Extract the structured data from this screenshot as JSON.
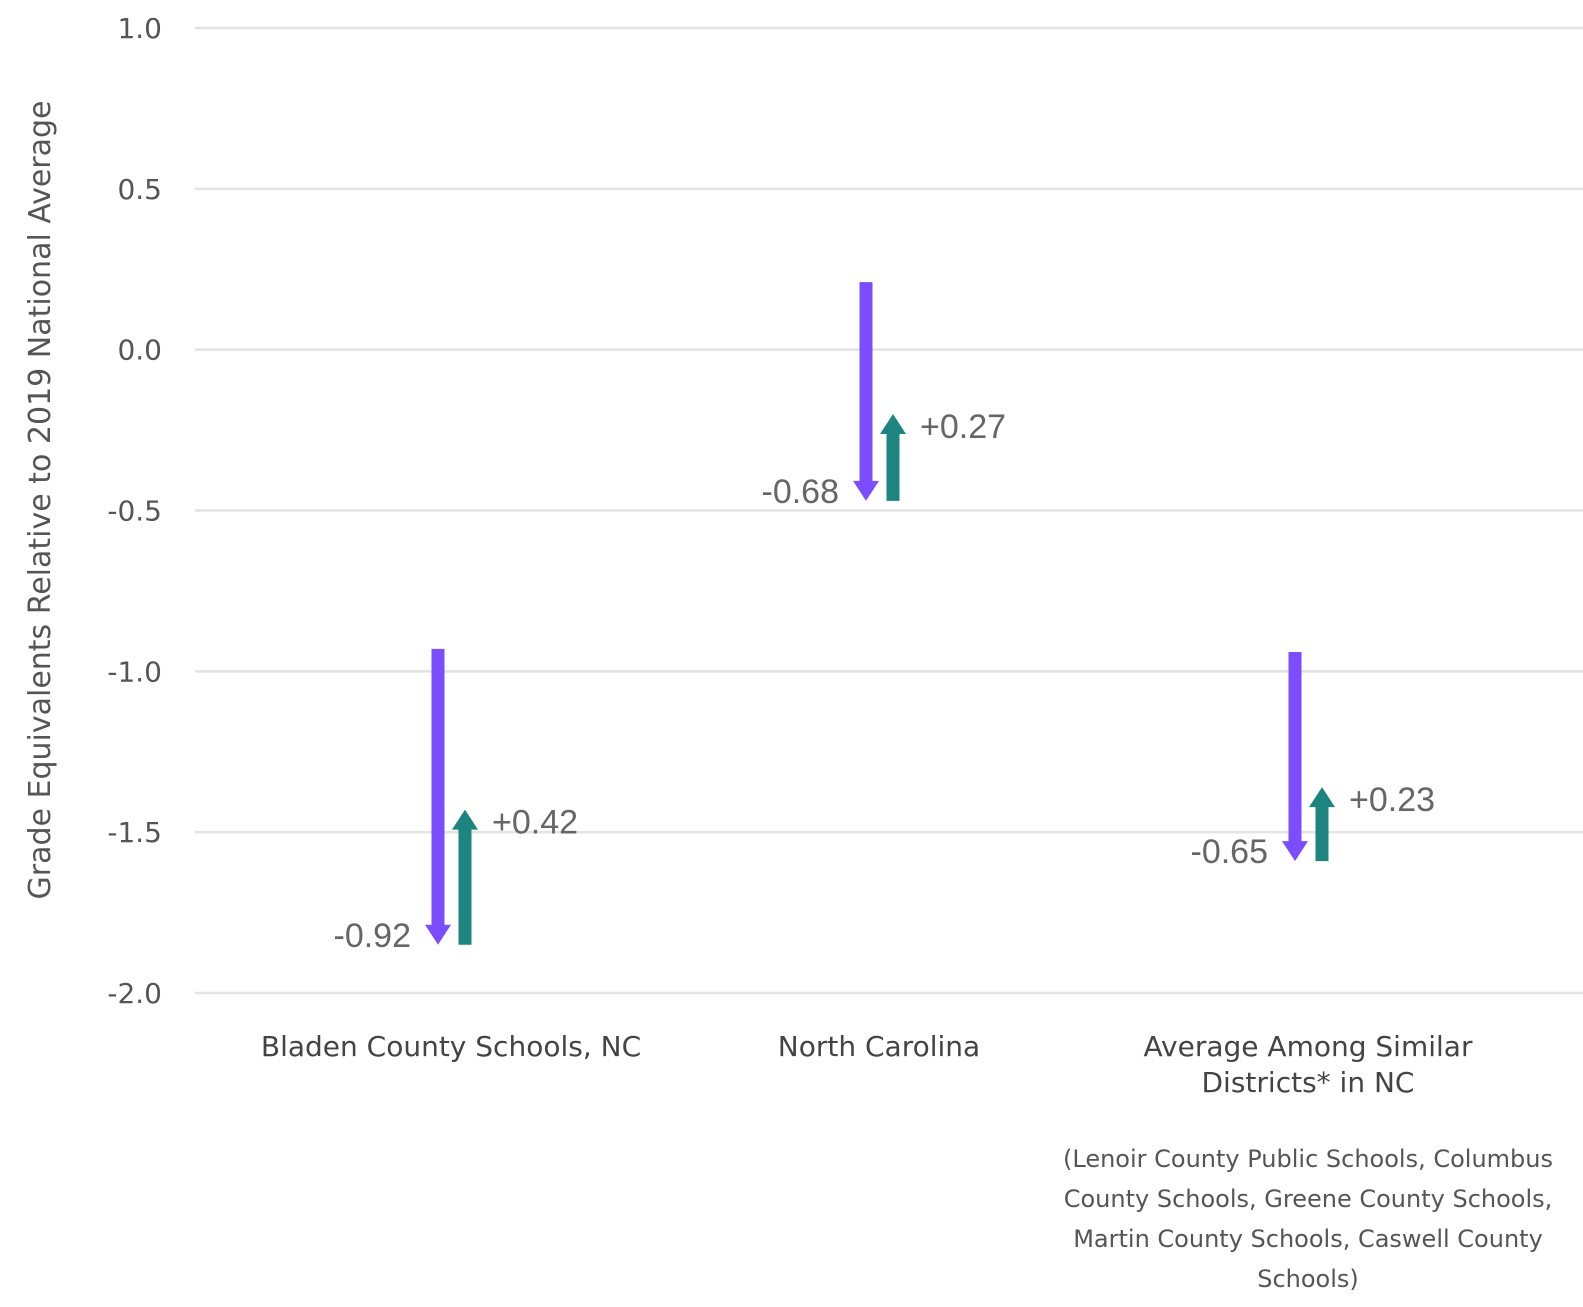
{
  "chart_data": {
    "type": "arrow",
    "ylabel": "Grade Equivalents Relative to 2019 National Average",
    "ylim": [
      -2.0,
      1.0
    ],
    "yticks": [
      1.0,
      0.5,
      0.0,
      -0.5,
      -1.0,
      -1.5,
      -2.0
    ],
    "ytick_labels": [
      "1.0",
      "0.5",
      "0.0",
      "-0.5",
      "-1.0",
      "-1.5",
      "-2.0"
    ],
    "grid": true,
    "colors": {
      "decline": "#7c4dff",
      "recovery": "#1e847f",
      "grid": "#e3e3e3"
    },
    "categories": [
      {
        "label_lines": [
          "Bladen County Schools, NC"
        ],
        "note_lines": [],
        "decline": {
          "start": -0.93,
          "end": -1.85,
          "label": "-0.92"
        },
        "recovery": {
          "start": -1.85,
          "end": -1.43,
          "label": "+0.42"
        }
      },
      {
        "label_lines": [
          "North Carolina"
        ],
        "note_lines": [],
        "decline": {
          "start": 0.21,
          "end": -0.47,
          "label": "-0.68"
        },
        "recovery": {
          "start": -0.47,
          "end": -0.2,
          "label": "+0.27"
        }
      },
      {
        "label_lines": [
          "Average Among Similar",
          "Districts* in NC"
        ],
        "note_lines": [
          "(Lenoir County Public Schools, Columbus",
          "County Schools, Greene County Schools,",
          "Martin County Schools, Caswell County",
          "Schools)"
        ],
        "decline": {
          "start": -0.94,
          "end": -1.59,
          "label": "-0.65"
        },
        "recovery": {
          "start": -1.59,
          "end": -1.36,
          "label": "+0.23"
        }
      }
    ]
  }
}
